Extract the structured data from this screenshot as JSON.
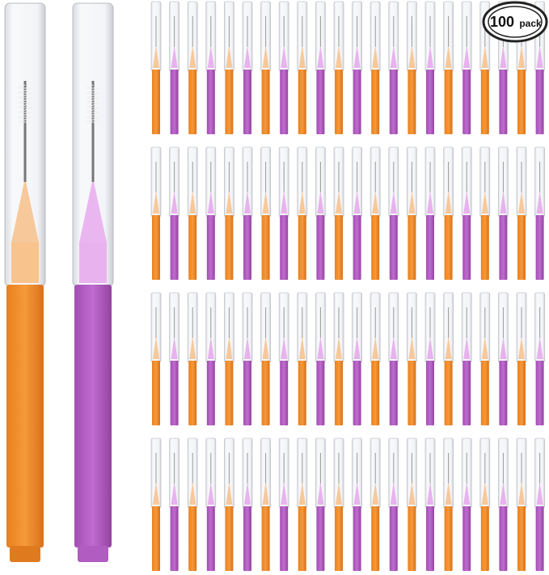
{
  "badge": {
    "number": "100",
    "unit": "pack"
  }
}
